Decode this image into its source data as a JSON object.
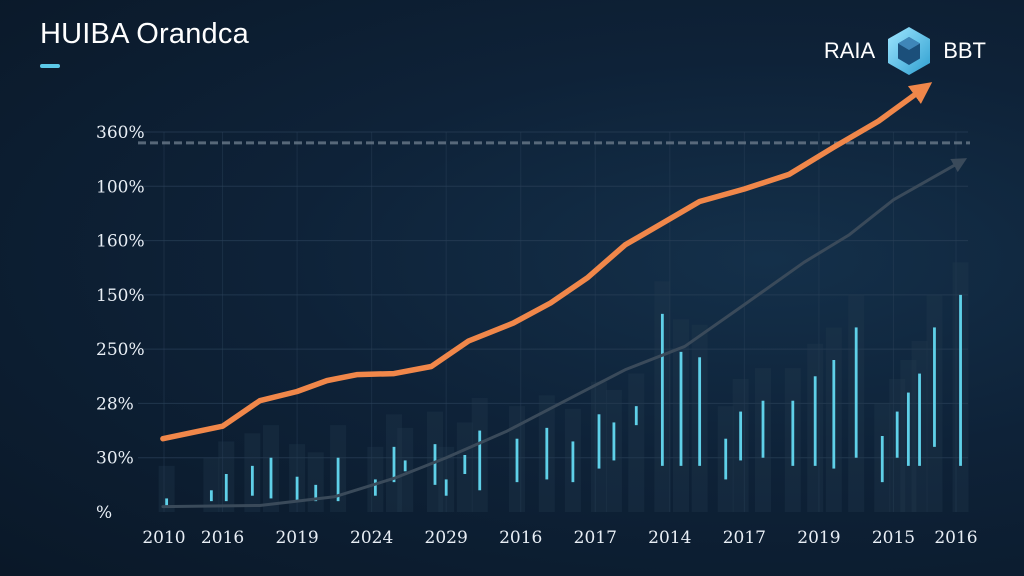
{
  "header": {
    "title": "HUIBA Orandca"
  },
  "brand": {
    "left_text": "RAIA",
    "right_text": "BBT",
    "icon": "hexagon-logo-icon",
    "icon_color": "#6fd3f0"
  },
  "colors": {
    "orange_series": "#f0874a",
    "gray_series": "#3a4a5a",
    "bars": "#5fd0e8",
    "grid": "#2a4058",
    "threshold": "#6a7a8a"
  },
  "chart_data": {
    "type": "line",
    "grid": true,
    "x_tick_labels": [
      "2010",
      "2016",
      "2019",
      "2024",
      "2029",
      "2016",
      "2017",
      "2014",
      "2017",
      "2019",
      "2015",
      "2016"
    ],
    "y_tick_labels": [
      "360%",
      "100%",
      "160%",
      "150%",
      "250%",
      "28%",
      "30%",
      "%"
    ],
    "y_tick_positions": [
      7,
      6,
      5,
      4,
      3,
      2,
      1,
      0
    ],
    "ylim": [
      0,
      7
    ],
    "xlim": [
      0,
      11
    ],
    "threshold_line": 6.8,
    "series": [
      {
        "kind": "line_arrow",
        "x": [
          0.2,
          1.0,
          1.5,
          2.0,
          2.4,
          2.8,
          3.3,
          3.8,
          4.3,
          4.9,
          5.4,
          5.9,
          6.4,
          6.9,
          7.4,
          8.0,
          8.6,
          9.2,
          9.8,
          10.4
        ],
        "y": [
          1.35,
          1.58,
          2.05,
          2.22,
          2.42,
          2.53,
          2.55,
          2.68,
          3.15,
          3.48,
          3.85,
          4.32,
          4.92,
          5.32,
          5.72,
          5.95,
          6.22,
          6.72,
          7.2,
          7.8
        ]
      },
      {
        "kind": "line_arrow",
        "x": [
          0.2,
          1.5,
          2.5,
          3.3,
          4.0,
          4.8,
          5.6,
          6.4,
          7.2,
          8.0,
          8.8,
          9.4,
          10.0,
          10.9
        ],
        "y": [
          0.1,
          0.12,
          0.28,
          0.62,
          1.0,
          1.48,
          2.05,
          2.62,
          3.05,
          3.82,
          4.6,
          5.1,
          5.75,
          6.45
        ]
      },
      {
        "kind": "range_bars",
        "x": [
          0.25,
          0.85,
          1.05,
          1.4,
          1.65,
          2.0,
          2.25,
          2.55,
          3.05,
          3.3,
          3.45,
          3.85,
          4.0,
          4.25,
          4.45,
          4.95,
          5.35,
          5.7,
          6.05,
          6.25,
          6.55,
          6.9,
          7.15,
          7.4,
          7.75,
          7.95,
          8.25,
          8.65,
          8.95,
          9.2,
          9.5,
          9.85,
          10.05,
          10.2,
          10.35,
          10.55,
          10.9
        ],
        "low": [
          0.1,
          0.2,
          0.2,
          0.3,
          0.25,
          0.2,
          0.2,
          0.2,
          0.3,
          0.55,
          0.75,
          0.5,
          0.3,
          0.7,
          0.4,
          0.55,
          0.6,
          0.55,
          0.8,
          0.95,
          1.6,
          0.85,
          0.85,
          0.85,
          0.6,
          0.95,
          1.0,
          0.85,
          0.85,
          0.8,
          1.0,
          0.55,
          1.0,
          0.85,
          0.85,
          1.2,
          0.85
        ],
        "high": [
          0.25,
          0.4,
          0.7,
          0.85,
          1.0,
          0.65,
          0.5,
          1.0,
          0.6,
          1.2,
          0.95,
          1.25,
          0.6,
          1.05,
          1.5,
          1.35,
          1.55,
          1.3,
          1.8,
          1.65,
          1.95,
          3.65,
          2.95,
          2.85,
          1.35,
          1.85,
          2.05,
          2.05,
          2.5,
          2.8,
          3.4,
          1.4,
          1.85,
          2.2,
          2.55,
          3.4,
          4.0
        ]
      }
    ]
  }
}
